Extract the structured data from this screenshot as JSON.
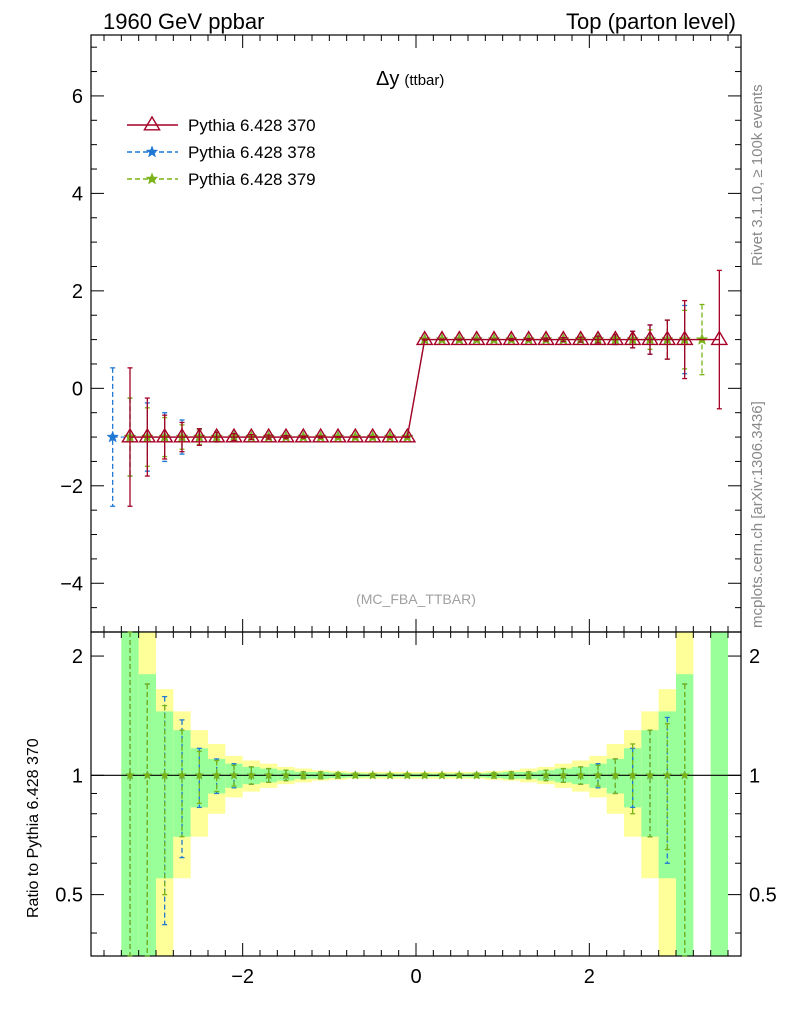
{
  "header": {
    "left": "1960 GeV ppbar",
    "right": "Top (parton level)"
  },
  "side_labels": {
    "rivet": "Rivet 3.1.10, ≥ 100k events",
    "mcplots": "mcplots.cern.ch [arXiv:1306.3436]"
  },
  "chart_data": [
    {
      "type": "line",
      "panel": "main",
      "title": "Δy",
      "title_suffix": "(ttbar)",
      "watermark": "(MC_FBA_TTBAR)",
      "xlabel": "",
      "ylabel": "",
      "xlim": [
        -3.75,
        3.75
      ],
      "ylim": [
        -5.0,
        7.25
      ],
      "yticks": [
        -4,
        -2,
        0,
        2,
        4,
        6
      ],
      "xticks": [
        -2,
        0,
        2
      ],
      "legend_position": "top-left",
      "bin_width": 0.2,
      "series": [
        {
          "name": "Pythia 6.428 370",
          "color": "#a50026",
          "marker": "triangle",
          "linestyle": "solid",
          "x": [
            -3.3,
            -3.1,
            -2.9,
            -2.7,
            -2.5,
            -2.3,
            -2.1,
            -1.9,
            -1.7,
            -1.5,
            -1.3,
            -1.1,
            -0.9,
            -0.7,
            -0.5,
            -0.3,
            -0.1,
            0.1,
            0.3,
            0.5,
            0.7,
            0.9,
            1.1,
            1.3,
            1.5,
            1.7,
            1.9,
            2.1,
            2.3,
            2.5,
            2.7,
            2.9,
            3.1,
            3.5
          ],
          "y": [
            -1,
            -1,
            -1,
            -1,
            -1,
            -1,
            -1,
            -1,
            -1,
            -1,
            -1,
            -1,
            -1,
            -1,
            -1,
            -1,
            -1,
            1,
            1,
            1,
            1,
            1,
            1,
            1,
            1,
            1,
            1,
            1,
            1,
            1,
            1,
            1,
            1,
            1
          ],
          "err": [
            1.42,
            0.8,
            0.45,
            0.3,
            0.17,
            0.1,
            0.07,
            0.05,
            0.04,
            0.03,
            0.02,
            0.02,
            0.01,
            0.01,
            0.01,
            0.01,
            0.01,
            0.01,
            0.01,
            0.01,
            0.01,
            0.01,
            0.02,
            0.02,
            0.03,
            0.04,
            0.05,
            0.07,
            0.1,
            0.17,
            0.3,
            0.4,
            0.8,
            1.42
          ]
        },
        {
          "name": "Pythia 6.428 378",
          "color": "#1f78d4",
          "marker": "star",
          "linestyle": "dashed",
          "x": [
            -3.5,
            -3.3,
            -3.1,
            -2.9,
            -2.7,
            -2.5,
            -2.3,
            -2.1,
            -1.9,
            -1.7,
            -1.5,
            -1.3,
            -1.1,
            -0.9,
            -0.7,
            -0.5,
            -0.3,
            -0.1,
            0.1,
            0.3,
            0.5,
            0.7,
            0.9,
            1.1,
            1.3,
            1.5,
            1.7,
            1.9,
            2.1,
            2.3,
            2.5,
            2.7,
            2.9,
            3.1
          ],
          "y": [
            -1,
            -1,
            -1,
            -1,
            -1,
            -1,
            -1,
            -1,
            -1,
            -1,
            -1,
            -1,
            -1,
            -1,
            -1,
            -1,
            -1,
            -1,
            1,
            1,
            1,
            1,
            1,
            1,
            1,
            1,
            1,
            1,
            1,
            1,
            1,
            1,
            1,
            1
          ],
          "err": [
            1.42,
            0.8,
            0.7,
            0.5,
            0.35,
            0.17,
            0.1,
            0.07,
            0.05,
            0.04,
            0.03,
            0.02,
            0.02,
            0.01,
            0.01,
            0.01,
            0.01,
            0.01,
            0.01,
            0.01,
            0.01,
            0.01,
            0.01,
            0.02,
            0.02,
            0.03,
            0.04,
            0.05,
            0.07,
            0.1,
            0.17,
            0.3,
            0.4,
            0.7
          ]
        },
        {
          "name": "Pythia 6.428 379",
          "color": "#7ab317",
          "marker": "star",
          "linestyle": "dashed",
          "x": [
            -3.3,
            -3.1,
            -2.9,
            -2.7,
            -2.5,
            -2.3,
            -2.1,
            -1.9,
            -1.7,
            -1.5,
            -1.3,
            -1.1,
            -0.9,
            -0.7,
            -0.5,
            -0.3,
            -0.1,
            0.1,
            0.3,
            0.5,
            0.7,
            0.9,
            1.1,
            1.3,
            1.5,
            1.7,
            1.9,
            2.1,
            2.3,
            2.5,
            2.7,
            2.9,
            3.1,
            3.3
          ],
          "y": [
            -1,
            -1,
            -1,
            -1,
            -1,
            -1,
            -1,
            -1,
            -1,
            -1,
            -1,
            -1,
            -1,
            -1,
            -1,
            -1,
            -1,
            1,
            1,
            1,
            1,
            1,
            1,
            1,
            1,
            1,
            1,
            1,
            1,
            1,
            1,
            1,
            1,
            1
          ],
          "err": [
            0.8,
            0.6,
            0.4,
            0.25,
            0.15,
            0.09,
            0.06,
            0.05,
            0.04,
            0.03,
            0.02,
            0.02,
            0.01,
            0.01,
            0.01,
            0.01,
            0.01,
            0.01,
            0.01,
            0.01,
            0.01,
            0.01,
            0.01,
            0.02,
            0.02,
            0.03,
            0.04,
            0.05,
            0.06,
            0.1,
            0.2,
            0.4,
            0.6,
            0.72
          ]
        }
      ]
    },
    {
      "type": "line",
      "panel": "ratio",
      "title": "",
      "xlabel": "",
      "ylabel": "Ratio to Pythia 6.428 370",
      "xlim": [
        -3.75,
        3.75
      ],
      "ylim": [
        0.35,
        2.3
      ],
      "yticks": [
        0.5,
        1,
        2
      ],
      "ytick_labels": [
        "0.5",
        "1",
        "2"
      ],
      "xticks": [
        -2,
        0,
        2
      ],
      "xtick_labels": [
        "−2",
        "0",
        "2"
      ],
      "bands": {
        "x_low": [
          -3.4,
          -3.2,
          -3.0,
          -2.8,
          -2.6,
          -2.4,
          -2.2,
          -2.0,
          -1.8,
          -1.6,
          -1.4,
          -1.2,
          -1.0,
          -0.8,
          -0.6,
          -0.4,
          -0.2,
          0.0,
          0.2,
          0.4,
          0.6,
          0.8,
          1.0,
          1.2,
          1.4,
          1.6,
          1.8,
          2.0,
          2.2,
          2.4,
          2.6,
          2.8,
          3.0,
          3.4
        ],
        "x_high": [
          -3.2,
          -3.0,
          -2.8,
          -2.6,
          -2.4,
          -2.2,
          -2.0,
          -1.8,
          -1.6,
          -1.4,
          -1.2,
          -1.0,
          -0.8,
          -0.6,
          -0.4,
          -0.2,
          0.0,
          0.2,
          0.4,
          0.6,
          0.8,
          1.0,
          1.2,
          1.4,
          1.6,
          1.8,
          2.0,
          2.2,
          2.4,
          2.6,
          2.8,
          3.0,
          3.2,
          3.6
        ],
        "green_halfwidth": [
          1.4,
          0.8,
          0.45,
          0.3,
          0.17,
          0.1,
          0.07,
          0.05,
          0.04,
          0.03,
          0.02,
          0.02,
          0.015,
          0.012,
          0.01,
          0.01,
          0.01,
          0.01,
          0.01,
          0.01,
          0.012,
          0.015,
          0.02,
          0.02,
          0.03,
          0.04,
          0.05,
          0.07,
          0.1,
          0.17,
          0.3,
          0.45,
          0.8,
          1.4
        ],
        "yellow_halfwidth": [
          2.0,
          1.5,
          0.65,
          0.45,
          0.3,
          0.2,
          0.12,
          0.09,
          0.07,
          0.05,
          0.04,
          0.03,
          0.025,
          0.02,
          0.02,
          0.02,
          0.02,
          0.02,
          0.02,
          0.02,
          0.02,
          0.025,
          0.03,
          0.04,
          0.05,
          0.07,
          0.09,
          0.12,
          0.2,
          0.3,
          0.45,
          0.65,
          1.5,
          2.0
        ]
      },
      "series": [
        {
          "name": "Pythia 6.428 378",
          "color": "#1f78d4",
          "marker": "star",
          "x": [
            -3.3,
            -3.1,
            -2.9,
            -2.7,
            -2.5,
            -2.3,
            -2.1,
            -1.9,
            -1.7,
            -1.5,
            -1.3,
            -1.1,
            -0.9,
            -0.7,
            -0.5,
            -0.3,
            -0.1,
            0.1,
            0.3,
            0.5,
            0.7,
            0.9,
            1.1,
            1.3,
            1.5,
            1.7,
            1.9,
            2.1,
            2.3,
            2.5,
            2.7,
            2.9,
            3.1
          ],
          "y": [
            1,
            1,
            1,
            1,
            1,
            1,
            1,
            1,
            1,
            1,
            1,
            1,
            1,
            1,
            1,
            1,
            1,
            1,
            1,
            1,
            1,
            1,
            1,
            1,
            1,
            1,
            1,
            1,
            1,
            1,
            1,
            1,
            1
          ],
          "err": [
            1.3,
            0.7,
            0.58,
            0.38,
            0.17,
            0.1,
            0.07,
            0.05,
            0.04,
            0.03,
            0.02,
            0.02,
            0.015,
            0.012,
            0.01,
            0.01,
            0.01,
            0.01,
            0.01,
            0.01,
            0.012,
            0.015,
            0.02,
            0.02,
            0.03,
            0.04,
            0.05,
            0.07,
            0.1,
            0.17,
            0.3,
            0.4,
            0.7
          ]
        },
        {
          "name": "Pythia 6.428 379",
          "color": "#7ab317",
          "marker": "star",
          "x": [
            -3.3,
            -3.1,
            -2.9,
            -2.7,
            -2.5,
            -2.3,
            -2.1,
            -1.9,
            -1.7,
            -1.5,
            -1.3,
            -1.1,
            -0.9,
            -0.7,
            -0.5,
            -0.3,
            -0.1,
            0.1,
            0.3,
            0.5,
            0.7,
            0.9,
            1.1,
            1.3,
            1.5,
            1.7,
            1.9,
            2.1,
            2.3,
            2.5,
            2.7,
            2.9,
            3.1
          ],
          "y": [
            1,
            1,
            1,
            1,
            1,
            1,
            1,
            1,
            1,
            1,
            1,
            1,
            1,
            1,
            1,
            1,
            1,
            1,
            1,
            1,
            1,
            1,
            1,
            1,
            1,
            1,
            1,
            1,
            1,
            1,
            1,
            1,
            1
          ],
          "err": [
            1.3,
            0.7,
            0.5,
            0.3,
            0.15,
            0.09,
            0.06,
            0.05,
            0.04,
            0.03,
            0.02,
            0.02,
            0.015,
            0.012,
            0.01,
            0.01,
            0.01,
            0.01,
            0.01,
            0.01,
            0.012,
            0.015,
            0.02,
            0.02,
            0.03,
            0.04,
            0.05,
            0.06,
            0.1,
            0.2,
            0.3,
            0.35,
            0.7
          ]
        }
      ]
    }
  ]
}
